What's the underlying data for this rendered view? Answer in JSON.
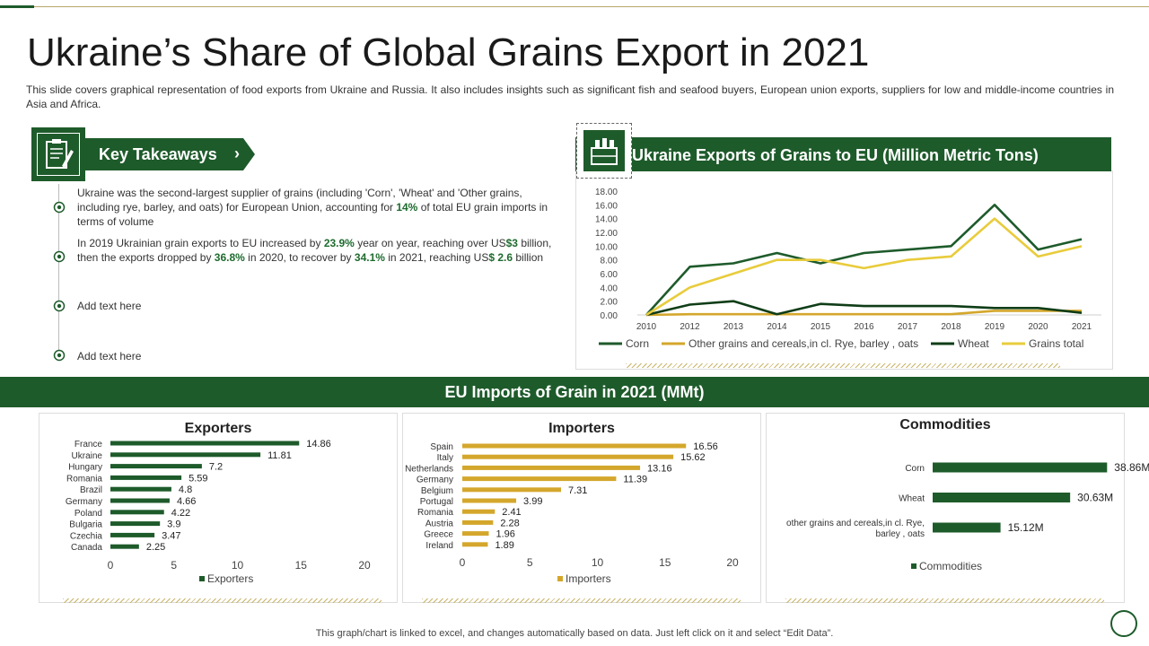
{
  "title": "Ukraine’s Share of Global Grains Export in 2021",
  "subtitle": "This slide covers graphical representation of food exports from Ukraine and Russia. It also includes insights such as significant fish and seafood buyers, European union exports, suppliers for low and middle-income countries in Asia and Africa.",
  "takeaways": {
    "heading": "Key Takeaways",
    "items": [
      {
        "p1": "Ukraine was the second-largest supplier of grains (including 'Corn', 'Wheat' and 'Other grains, including rye, barley, and oats) for European Union, accounting for ",
        "h1": "14%",
        "p2": " of total EU grain imports in terms of volume"
      },
      {
        "p1": "In 2019 Ukrainian grain exports to EU increased by ",
        "h1": "23.9%",
        "p2": " year on year, reaching over US",
        "h2": "$3",
        "p3": " billion, then the exports dropped by ",
        "h3": "36.8%",
        "p4": " in 2020, to recover by ",
        "h4": "34.1%",
        "p5": " in 2021, reaching US",
        "h5": "$ 2.6",
        "p6": " billion"
      },
      {
        "text": "Add text here"
      },
      {
        "text": "Add text here"
      }
    ]
  },
  "eu_imports_title": "EU Imports of Grain in 2021 (MMt)",
  "footer": "This graph/chart is linked to excel, and changes automatically based on data. Just left click on it and select “Edit Data”.",
  "colors": {
    "dark_green": "#1e5b2b",
    "gold": "#d4a72c",
    "light_yellow": "#e8cc3c"
  },
  "chart_data": [
    {
      "type": "line",
      "title": "Ukraine Exports of Grains to EU (Million Metric Tons)",
      "x": [
        "2010",
        "2012",
        "2013",
        "2014",
        "2015",
        "2016",
        "2017",
        "2018",
        "2019",
        "2020",
        "2021"
      ],
      "ylim": [
        0,
        18
      ],
      "yticks": [
        "0.00",
        "2.00",
        "4.00",
        "6.00",
        "8.00",
        "10.00",
        "12.00",
        "14.00",
        "16.00",
        "18.00"
      ],
      "series": [
        {
          "name": "Corn",
          "color": "#1e5b2b",
          "values": [
            0,
            7.0,
            7.5,
            9.0,
            7.5,
            9.0,
            9.5,
            10.0,
            16.0,
            9.5,
            11.0
          ]
        },
        {
          "name": "Other grains and cereals,in cl. Rye, barley , oats",
          "color": "#d4a72c",
          "values": [
            0,
            0.1,
            0.1,
            0.1,
            0.1,
            0.1,
            0.1,
            0.1,
            0.6,
            0.6,
            0.6
          ]
        },
        {
          "name": "Wheat",
          "color": "#0f3d17",
          "values": [
            0,
            1.5,
            2.0,
            0.1,
            1.6,
            1.3,
            1.3,
            1.3,
            1.0,
            1.0,
            0.3
          ]
        },
        {
          "name": "Grains total",
          "color": "#e8cc3c",
          "values": [
            0,
            4.0,
            6.0,
            8.0,
            8.0,
            6.8,
            8.0,
            8.5,
            14.0,
            8.5,
            10.0
          ]
        }
      ]
    },
    {
      "type": "bar",
      "title": "Exporters",
      "categories": [
        "France",
        "Ukraine",
        "Hungary",
        "Romania",
        "Brazil",
        "Germany",
        "Poland",
        "Bulgaria",
        "Czechia",
        "Canada"
      ],
      "values": [
        14.86,
        11.81,
        7.2,
        5.59,
        4.8,
        4.66,
        4.22,
        3.9,
        3.47,
        2.25
      ],
      "labels": [
        "14.86",
        "11.81",
        "7.2",
        "5.59",
        "4.8",
        "4.66",
        "4.22",
        "3.9",
        "3.47",
        "2.25"
      ],
      "xticks": [
        0,
        5,
        10,
        15,
        20
      ],
      "xlim": [
        0,
        20
      ],
      "legend": "Exporters",
      "color": "#1e5b2b"
    },
    {
      "type": "bar",
      "title": "Importers",
      "categories": [
        "Spain",
        "Italy",
        "Netherlands",
        "Germany",
        "Belgium",
        "Portugal",
        "Romania",
        "Austria",
        "Greece",
        "Ireland"
      ],
      "values": [
        16.56,
        15.62,
        13.16,
        11.39,
        7.31,
        3.99,
        2.41,
        2.28,
        1.96,
        1.89
      ],
      "labels": [
        "16.56",
        "15.62",
        "13.16",
        "11.39",
        "7.31",
        "3.99",
        "2.41",
        "2.28",
        "1.96",
        "1.89"
      ],
      "xticks": [
        0,
        5,
        10,
        15,
        20
      ],
      "xlim": [
        0,
        20
      ],
      "legend": "Importers",
      "color": "#d4a72c"
    },
    {
      "type": "bar",
      "title": "Commodities",
      "categories": [
        "Corn",
        "Wheat",
        "other grains and cereals,in cl. Rye, barley , oats"
      ],
      "category_lines": [
        [
          "Corn"
        ],
        [
          "Wheat"
        ],
        [
          "other grains and cereals,in cl. Rye,",
          "barley , oats"
        ]
      ],
      "values": [
        38.86,
        30.63,
        15.12
      ],
      "labels": [
        "38.86M",
        "30.63M",
        "15.12M"
      ],
      "xlim": [
        0,
        40
      ],
      "legend": "Commodities",
      "color": "#1e5b2b"
    }
  ]
}
